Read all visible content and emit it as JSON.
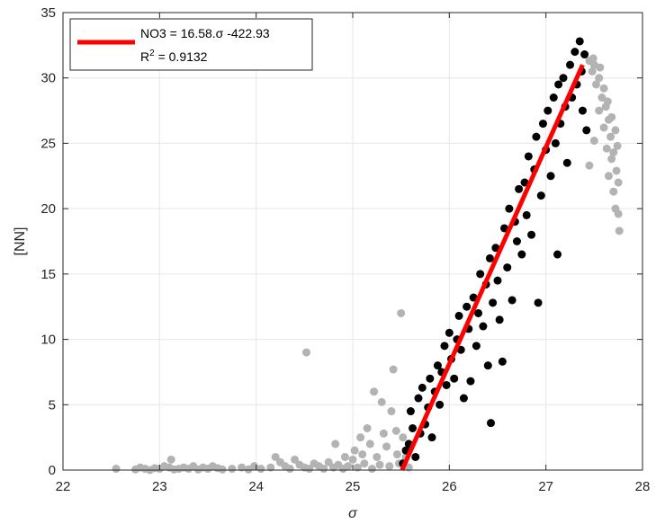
{
  "chart_data": {
    "type": "scatter",
    "xlabel": "σ",
    "ylabel": "[NN]",
    "xlim": [
      22,
      28
    ],
    "ylim": [
      0,
      35
    ],
    "x_ticks": [
      22,
      23,
      24,
      25,
      26,
      27,
      28
    ],
    "y_ticks": [
      0,
      5,
      10,
      15,
      20,
      25,
      30,
      35
    ],
    "grid": true,
    "legend_position": "top-left",
    "colors": {
      "included": "#000000",
      "excluded": "#b3b3b3",
      "fit": "#ff0000"
    },
    "fit_line": {
      "legend_line1": "NO3 = 16.58.σ -422.93",
      "legend_r2_prefix": "R",
      "legend_r2_exp": "2",
      "legend_r2_value": " = 0.9132",
      "x": [
        25.51,
        27.38
      ],
      "y": [
        0,
        31
      ]
    },
    "series": [
      {
        "role": "excluded",
        "points": [
          [
            22.55,
            0.1
          ],
          [
            22.75,
            0.05
          ],
          [
            22.8,
            0.2
          ],
          [
            22.85,
            0.1
          ],
          [
            22.9,
            0.0
          ],
          [
            22.95,
            0.15
          ],
          [
            23.0,
            0.1
          ],
          [
            23.05,
            0.3
          ],
          [
            23.1,
            0.2
          ],
          [
            23.12,
            0.8
          ],
          [
            23.15,
            0.05
          ],
          [
            23.2,
            0.1
          ],
          [
            23.25,
            0.2
          ],
          [
            23.3,
            0.1
          ],
          [
            23.35,
            0.3
          ],
          [
            23.4,
            0.05
          ],
          [
            23.45,
            0.2
          ],
          [
            23.5,
            0.1
          ],
          [
            23.55,
            0.3
          ],
          [
            23.6,
            0.15
          ],
          [
            23.65,
            0.05
          ],
          [
            23.75,
            0.1
          ],
          [
            23.85,
            0.2
          ],
          [
            23.92,
            0.05
          ],
          [
            23.98,
            0.3
          ],
          [
            24.05,
            0.1
          ],
          [
            24.15,
            0.2
          ],
          [
            24.2,
            1.0
          ],
          [
            24.25,
            0.6
          ],
          [
            24.3,
            0.3
          ],
          [
            24.35,
            0.1
          ],
          [
            24.4,
            0.8
          ],
          [
            24.45,
            0.4
          ],
          [
            24.5,
            0.2
          ],
          [
            24.52,
            9.0
          ],
          [
            24.55,
            0.1
          ],
          [
            24.6,
            0.5
          ],
          [
            24.65,
            0.3
          ],
          [
            24.7,
            0.1
          ],
          [
            24.75,
            0.6
          ],
          [
            24.8,
            0.2
          ],
          [
            24.82,
            2.0
          ],
          [
            24.85,
            0.4
          ],
          [
            24.9,
            0.1
          ],
          [
            24.92,
            1.0
          ],
          [
            24.95,
            0.3
          ],
          [
            25.0,
            0.8
          ],
          [
            25.02,
            1.5
          ],
          [
            25.05,
            0.2
          ],
          [
            25.08,
            2.5
          ],
          [
            25.1,
            1.2
          ],
          [
            25.12,
            0.5
          ],
          [
            25.15,
            3.2
          ],
          [
            25.18,
            2.0
          ],
          [
            25.2,
            0.1
          ],
          [
            25.22,
            6.0
          ],
          [
            25.25,
            1.0
          ],
          [
            25.28,
            0.4
          ],
          [
            25.3,
            5.2
          ],
          [
            25.32,
            2.8
          ],
          [
            25.35,
            1.8
          ],
          [
            25.38,
            0.3
          ],
          [
            25.4,
            4.5
          ],
          [
            25.42,
            7.7
          ],
          [
            25.45,
            3.0
          ],
          [
            25.46,
            1.2
          ],
          [
            25.48,
            0.5
          ],
          [
            25.5,
            12.0
          ],
          [
            25.52,
            2.5
          ],
          [
            25.53,
            0.6
          ],
          [
            25.55,
            1.0
          ],
          [
            25.58,
            0.2
          ],
          [
            27.45,
            31.3
          ],
          [
            27.48,
            30.5
          ],
          [
            27.5,
            31.0
          ],
          [
            27.52,
            29.5
          ],
          [
            27.5,
            25.2
          ],
          [
            27.45,
            23.3
          ],
          [
            27.55,
            30.0
          ],
          [
            27.55,
            27.5
          ],
          [
            27.58,
            28.5
          ],
          [
            27.6,
            29.2
          ],
          [
            27.6,
            26.2
          ],
          [
            27.62,
            27.8
          ],
          [
            27.63,
            24.6
          ],
          [
            27.65,
            26.8
          ],
          [
            27.65,
            22.5
          ],
          [
            27.67,
            25.5
          ],
          [
            27.68,
            23.8
          ],
          [
            27.7,
            24.3
          ],
          [
            27.7,
            21.3
          ],
          [
            27.72,
            20.0
          ],
          [
            27.73,
            22.9
          ],
          [
            27.75,
            19.6
          ],
          [
            27.75,
            22.0
          ],
          [
            27.76,
            18.3
          ],
          [
            27.74,
            24.8
          ],
          [
            27.72,
            26.0
          ],
          [
            27.68,
            27.0
          ],
          [
            27.64,
            28.2
          ],
          [
            27.56,
            30.8
          ],
          [
            27.49,
            31.5
          ]
        ]
      },
      {
        "role": "included",
        "points": [
          [
            25.52,
            0.5
          ],
          [
            25.55,
            1.5
          ],
          [
            25.58,
            2.0
          ],
          [
            25.6,
            4.5
          ],
          [
            25.62,
            3.2
          ],
          [
            25.65,
            1.0
          ],
          [
            25.68,
            5.5
          ],
          [
            25.7,
            2.8
          ],
          [
            25.72,
            6.3
          ],
          [
            25.75,
            3.5
          ],
          [
            25.78,
            4.8
          ],
          [
            25.8,
            7.0
          ],
          [
            25.82,
            2.5
          ],
          [
            25.85,
            6.0
          ],
          [
            25.88,
            8.0
          ],
          [
            25.9,
            5.0
          ],
          [
            25.92,
            7.5
          ],
          [
            25.95,
            9.5
          ],
          [
            25.97,
            6.5
          ],
          [
            26.0,
            10.5
          ],
          [
            26.02,
            8.5
          ],
          [
            26.05,
            7.0
          ],
          [
            26.08,
            10.0
          ],
          [
            26.1,
            11.8
          ],
          [
            26.12,
            9.2
          ],
          [
            26.15,
            5.5
          ],
          [
            26.18,
            12.5
          ],
          [
            26.2,
            10.8
          ],
          [
            26.22,
            6.8
          ],
          [
            26.25,
            13.2
          ],
          [
            26.28,
            9.5
          ],
          [
            26.3,
            12.0
          ],
          [
            26.32,
            15.0
          ],
          [
            26.35,
            11.0
          ],
          [
            26.38,
            14.2
          ],
          [
            26.4,
            8.0
          ],
          [
            26.42,
            16.2
          ],
          [
            26.43,
            3.6
          ],
          [
            26.45,
            12.8
          ],
          [
            26.48,
            17.0
          ],
          [
            26.5,
            14.5
          ],
          [
            26.52,
            11.5
          ],
          [
            26.55,
            8.3
          ],
          [
            26.57,
            18.5
          ],
          [
            26.6,
            15.5
          ],
          [
            26.62,
            20.0
          ],
          [
            26.65,
            13.0
          ],
          [
            26.68,
            19.0
          ],
          [
            26.7,
            17.5
          ],
          [
            26.72,
            21.5
          ],
          [
            26.75,
            16.5
          ],
          [
            26.78,
            22.0
          ],
          [
            26.8,
            19.5
          ],
          [
            26.82,
            24.0
          ],
          [
            26.85,
            18.0
          ],
          [
            26.88,
            23.0
          ],
          [
            26.9,
            25.5
          ],
          [
            26.92,
            12.8
          ],
          [
            26.95,
            21.0
          ],
          [
            26.97,
            26.5
          ],
          [
            27.0,
            24.5
          ],
          [
            27.02,
            27.5
          ],
          [
            27.05,
            22.5
          ],
          [
            27.08,
            28.5
          ],
          [
            27.1,
            25.0
          ],
          [
            27.12,
            16.5
          ],
          [
            27.13,
            29.5
          ],
          [
            27.15,
            26.5
          ],
          [
            27.18,
            30.0
          ],
          [
            27.2,
            27.8
          ],
          [
            27.22,
            23.5
          ],
          [
            27.25,
            31.0
          ],
          [
            27.27,
            28.5
          ],
          [
            27.3,
            32.0
          ],
          [
            27.32,
            29.5
          ],
          [
            27.35,
            32.8
          ],
          [
            27.37,
            30.5
          ],
          [
            27.4,
            31.8
          ],
          [
            27.38,
            27.5
          ],
          [
            27.42,
            26.0
          ]
        ]
      }
    ]
  }
}
